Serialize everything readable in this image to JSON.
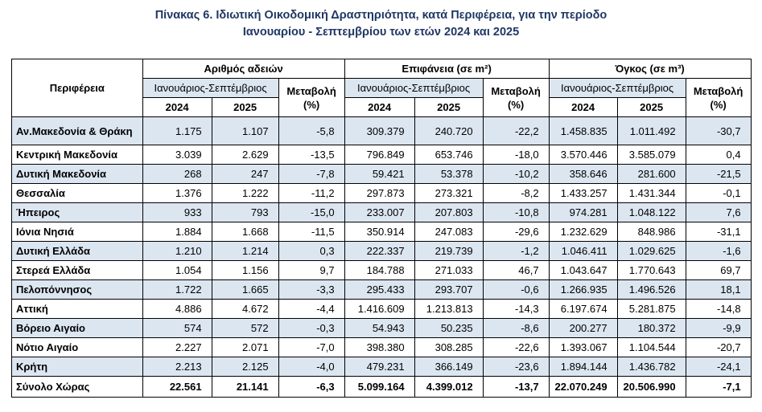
{
  "title": [
    "Πίνακας 6. Ιδιωτική  Οικοδομική Δραστηριότητα, κατά Περιφέρεια, για την περίοδο",
    "Ιανουαρίου - Σεπτεμβρίου των ετών 2024 και 2025"
  ],
  "table": {
    "region_header": "Περιφέρεια",
    "groups": [
      {
        "name": "Αριθμός αδειών",
        "period": "Ιανουάριος-Σεπτέμβριος",
        "years": [
          "2024",
          "2025"
        ],
        "change": [
          "Μεταβολή",
          "(%)"
        ]
      },
      {
        "name": "Επιφάνεια (σε m²)",
        "period": "Ιανουάριος-Σεπτέμβριος",
        "years": [
          "2024",
          "2025"
        ],
        "change": [
          "Μεταβολή",
          "(%)"
        ]
      },
      {
        "name": "Όγκος (σε m³)",
        "period": "Ιανουάριος-Σεπτέμβριος",
        "years": [
          "2024",
          "2025"
        ],
        "change": [
          "Μεταβολή",
          "(%)"
        ]
      }
    ],
    "rows": [
      [
        "Αν.Μακεδονία & Θράκη",
        "1.175",
        "1.107",
        "-5,8",
        "309.379",
        "240.720",
        "-22,2",
        "1.458.835",
        "1.011.492",
        "-30,7"
      ],
      [
        "Κεντρική Μακεδονία",
        "3.039",
        "2.629",
        "-13,5",
        "796.849",
        "653.746",
        "-18,0",
        "3.570.446",
        "3.585.079",
        "0,4"
      ],
      [
        "Δυτική Μακεδονία",
        "268",
        "247",
        "-7,8",
        "59.421",
        "53.378",
        "-10,2",
        "358.646",
        "281.600",
        "-21,5"
      ],
      [
        "Θεσσαλία",
        "1.376",
        "1.222",
        "-11,2",
        "297.873",
        "273.321",
        "-8,2",
        "1.433.257",
        "1.431.344",
        "-0,1"
      ],
      [
        "Ήπειρος",
        "933",
        "793",
        "-15,0",
        "233.007",
        "207.803",
        "-10,8",
        "974.281",
        "1.048.122",
        "7,6"
      ],
      [
        "Ιόνια Νησιά",
        "1.884",
        "1.668",
        "-11,5",
        "350.914",
        "247.083",
        "-29,6",
        "1.232.629",
        "848.986",
        "-31,1"
      ],
      [
        "Δυτική Ελλάδα",
        "1.210",
        "1.214",
        "0,3",
        "222.337",
        "219.739",
        "-1,2",
        "1.046.411",
        "1.029.625",
        "-1,6"
      ],
      [
        "Στερεά Ελλάδα",
        "1.054",
        "1.156",
        "9,7",
        "184.788",
        "271.033",
        "46,7",
        "1.043.647",
        "1.770.643",
        "69,7"
      ],
      [
        "Πελοπόννησος",
        "1.722",
        "1.665",
        "-3,3",
        "295.433",
        "293.707",
        "-0,6",
        "1.266.935",
        "1.496.526",
        "18,1"
      ],
      [
        "Αττική",
        "4.886",
        "4.672",
        "-4,4",
        "1.416.609",
        "1.213.813",
        "-14,3",
        "6.197.674",
        "5.281.875",
        "-14,8"
      ],
      [
        "Βόρειο Αιγαίο",
        "574",
        "572",
        "-0,3",
        "54.943",
        "50.235",
        "-8,6",
        "200.277",
        "180.372",
        "-9,9"
      ],
      [
        "Νότιο Αιγαίο",
        "2.227",
        "2.071",
        "-7,0",
        "398.380",
        "308.285",
        "-22,6",
        "1.393.067",
        "1.104.544",
        "-20,7"
      ],
      [
        "Κρήτη",
        "2.213",
        "2.125",
        "-4,0",
        "479.231",
        "366.149",
        "-23,6",
        "1.894.144",
        "1.436.782",
        "-24,1"
      ]
    ],
    "total": [
      "Σύνολο Χώρας",
      "22.561",
      "21.141",
      "-6,3",
      "5.099.164",
      "4.399.012",
      "-13,7",
      "22.070.249",
      "20.506.990",
      "-7,1"
    ]
  }
}
